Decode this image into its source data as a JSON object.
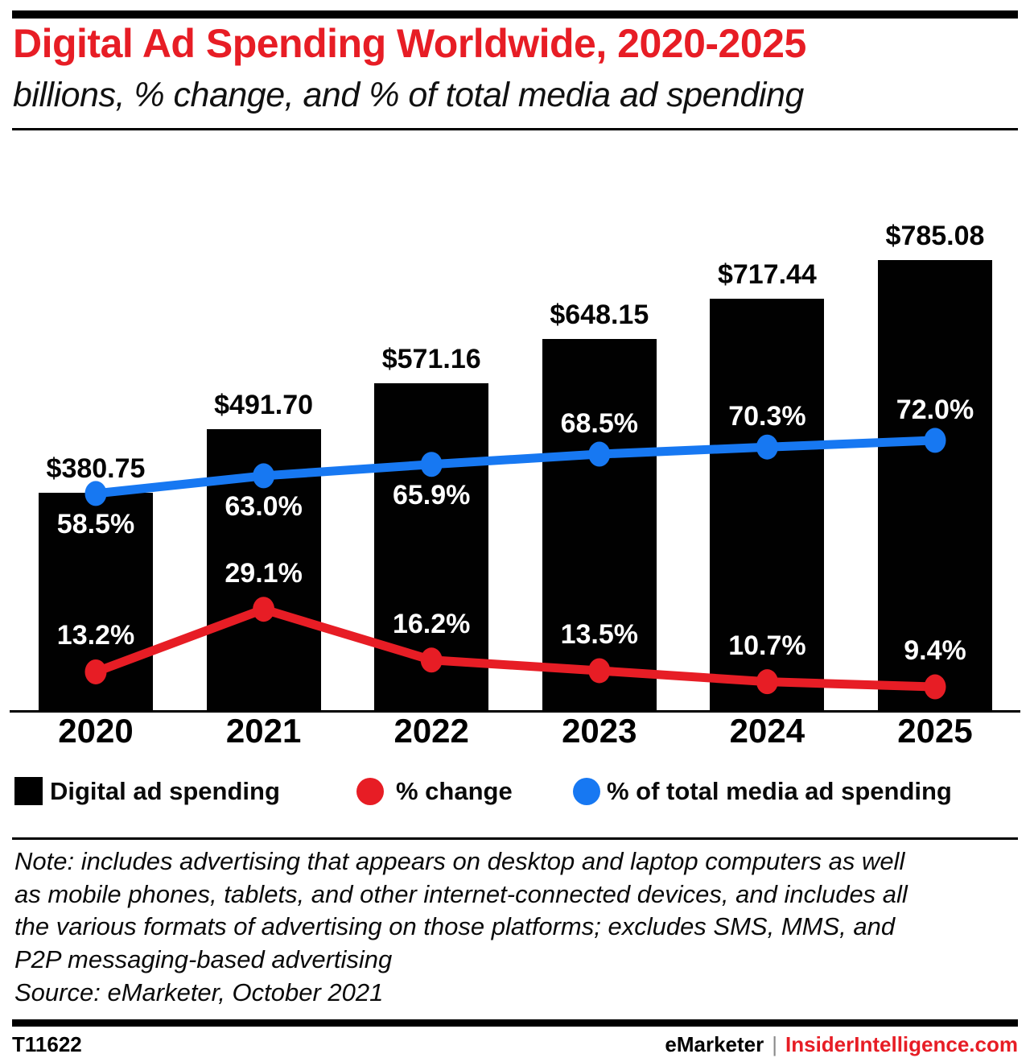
{
  "header": {
    "title": "Digital Ad Spending Worldwide, 2020-2025",
    "subtitle": "billions, % change, and % of total media ad spending"
  },
  "colors": {
    "brand_red": "#e71d25",
    "line_blue": "#1778f2",
    "bar_black": "#010101"
  },
  "chart_data": {
    "type": "bar",
    "combo": "bar + two line series (labels shown on chart, no y-axes drawn)",
    "grid": false,
    "legend_position": "bottom",
    "categories": [
      "2020",
      "2021",
      "2022",
      "2023",
      "2024",
      "2025"
    ],
    "series": [
      {
        "name": "Digital ad spending",
        "type": "bar",
        "unit": "US$ billions",
        "color": "#010101",
        "values": [
          380.75,
          491.7,
          571.16,
          648.15,
          717.44,
          785.08
        ],
        "value_labels": [
          "$380.75",
          "$491.70",
          "$571.16",
          "$648.15",
          "$717.44",
          "$785.08"
        ]
      },
      {
        "name": "% change",
        "type": "line",
        "unit": "%",
        "color": "#e71d25",
        "values": [
          13.2,
          29.1,
          16.2,
          13.5,
          10.7,
          9.4
        ],
        "value_labels": [
          "13.2%",
          "29.1%",
          "16.2%",
          "13.5%",
          "10.7%",
          "9.4%"
        ]
      },
      {
        "name": "% of total media ad spending",
        "type": "line",
        "unit": "%",
        "color": "#1778f2",
        "values": [
          58.5,
          63.0,
          65.9,
          68.5,
          70.3,
          72.0
        ],
        "value_labels": [
          "58.5%",
          "63.0%",
          "65.9%",
          "68.5%",
          "70.3%",
          "72.0%"
        ]
      }
    ],
    "implied_value_axis_range_billions": [
      0,
      950
    ],
    "implied_pct_axis_range": [
      0,
      184
    ]
  },
  "legend": {
    "items": [
      {
        "label": "Digital ad spending",
        "swatch": "black-square"
      },
      {
        "label": "% change",
        "swatch": "red-circle"
      },
      {
        "label": "% of total media ad spending",
        "swatch": "blue-circle"
      }
    ]
  },
  "note": {
    "lines": [
      "Note: includes advertising that appears on desktop and laptop computers as well",
      "as mobile phones, tablets, and other internet-connected devices, and includes all",
      "the various formats of advertising on those platforms; excludes SMS, MMS, and",
      "P2P messaging-based advertising",
      "Source: eMarketer, October 2021"
    ]
  },
  "footer": {
    "chart_id": "T11622",
    "brand": "eMarketer",
    "separator": "|",
    "site": "InsiderIntelligence.com"
  }
}
